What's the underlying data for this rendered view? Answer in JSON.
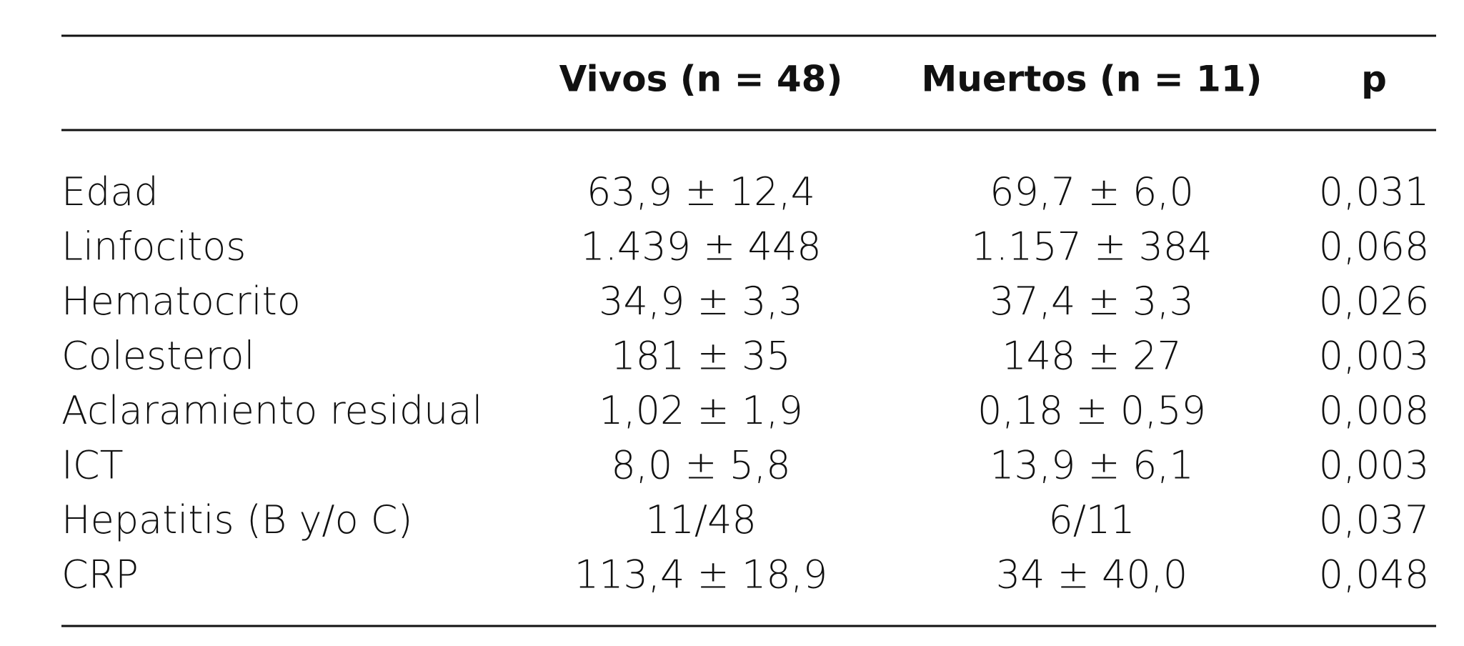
{
  "table": {
    "columns": [
      "Vivos (n = 48)",
      "Muertos (n = 11)",
      "p"
    ],
    "rows": [
      [
        "Edad",
        "63,9 ± 12,4",
        "69,7 ± 6,0",
        "0,031"
      ],
      [
        "Linfocitos",
        "1.439 ± 448",
        "1.157 ± 384",
        "0,068"
      ],
      [
        "Hematocrito",
        "34,9 ± 3,3",
        "37,4 ± 3,3",
        "0,026"
      ],
      [
        "Colesterol",
        "181 ± 35",
        "148 ± 27",
        "0,003"
      ],
      [
        "Aclaramiento residual",
        "1,02 ± 1,9",
        "0,18 ± 0,59",
        "0,008"
      ],
      [
        "ICT",
        "8,0 ± 5,8",
        "13,9 ± 6,1",
        "0,003"
      ],
      [
        "Hepatitis (B y/o C)",
        "11/48",
        "6/11",
        "0,037"
      ],
      [
        "CRP",
        "113,4 ± 18,9",
        "34 ± 40,0",
        "0,048"
      ]
    ]
  }
}
